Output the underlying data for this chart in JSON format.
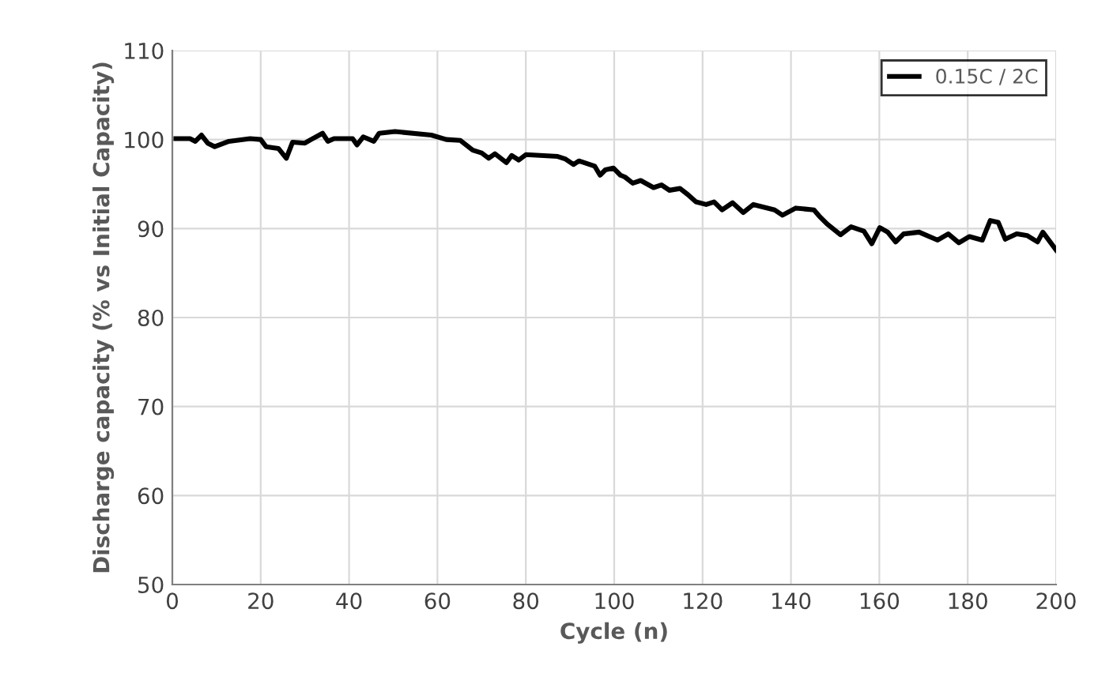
{
  "chart_data": {
    "type": "line",
    "xlabel": "Cycle (n)",
    "ylabel": "Discharge capacity (% vs Initial Capacity)",
    "xlim": [
      0,
      200
    ],
    "ylim": [
      50,
      110
    ],
    "xticks": [
      0,
      20,
      40,
      60,
      80,
      100,
      120,
      140,
      160,
      180,
      200
    ],
    "yticks": [
      50,
      60,
      70,
      80,
      90,
      100,
      110
    ],
    "grid": true,
    "legend": "top right",
    "marker": "none",
    "line_style": "solid",
    "series": [
      {
        "name": "0.15C / 2C",
        "color": "#000000",
        "x": [
          0.8,
          4,
          5.2,
          6.6,
          8,
          9.6,
          12.8,
          17.6,
          20,
          21.2,
          24,
          25.8,
          27.2,
          30,
          31.4,
          34,
          35.2,
          36.6,
          40.8,
          41.8,
          43.2,
          45.6,
          46.8,
          50.4,
          58.6,
          62,
          65.2,
          68,
          70,
          71.6,
          73,
          75.6,
          76.8,
          78.4,
          80,
          87.2,
          89,
          90.8,
          92,
          95.6,
          96.8,
          98,
          99.8,
          101.4,
          102.4,
          104.2,
          106,
          108.9,
          110.7,
          112.5,
          114.9,
          116.7,
          118.5,
          120.8,
          122.6,
          124.4,
          126.8,
          129.2,
          131.5,
          136.3,
          138.1,
          141.1,
          145.2,
          146.4,
          148.2,
          151.2,
          153.6,
          156.5,
          158.3,
          160.1,
          161.9,
          163.7,
          165.5,
          169,
          173.2,
          175.6,
          178,
          180.4,
          183.3,
          185.1,
          186.9,
          188.5,
          191.1,
          193.5,
          195.8,
          197,
          200
        ],
        "values": [
          100.1,
          100.1,
          99.8,
          100.5,
          99.6,
          99.2,
          99.8,
          100.1,
          100,
          99.2,
          99,
          97.9,
          99.7,
          99.6,
          100,
          100.7,
          99.8,
          100.1,
          100.1,
          99.4,
          100.3,
          99.8,
          100.7,
          100.9,
          100.5,
          100,
          99.9,
          98.8,
          98.5,
          97.9,
          98.4,
          97.4,
          98.2,
          97.7,
          98.3,
          98.1,
          97.8,
          97.2,
          97.6,
          97,
          96,
          96.6,
          96.8,
          96,
          95.8,
          95.1,
          95.4,
          94.6,
          94.9,
          94.3,
          94.5,
          93.8,
          93,
          92.7,
          93,
          92.1,
          92.9,
          91.8,
          92.7,
          92.1,
          91.5,
          92.3,
          92.1,
          91.4,
          90.5,
          89.3,
          90.2,
          89.7,
          88.3,
          90.1,
          89.6,
          88.5,
          89.4,
          89.6,
          88.7,
          89.4,
          88.4,
          89.1,
          88.7,
          90.9,
          90.7,
          88.8,
          89.4,
          89.2,
          88.5,
          89.6,
          87.6
        ]
      }
    ]
  }
}
